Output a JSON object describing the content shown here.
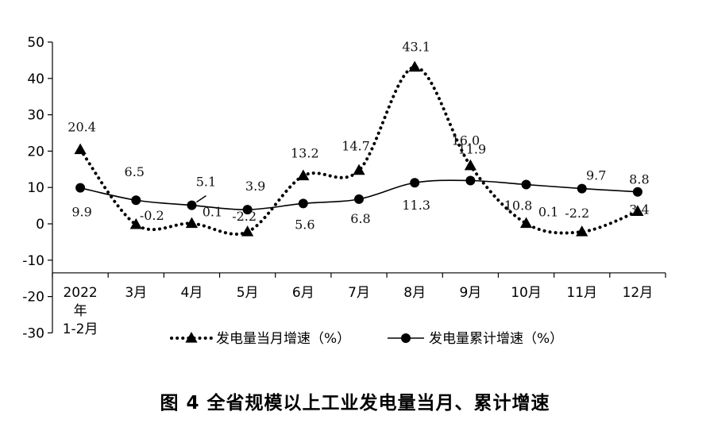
{
  "chart_data": {
    "type": "line",
    "title": "图 4  全省规模以上工业发电量当月、累计增速",
    "categories": [
      [
        "2022",
        "年",
        "1-2月"
      ],
      [
        "3月"
      ],
      [
        "4月"
      ],
      [
        "5月"
      ],
      [
        "6月"
      ],
      [
        "7月"
      ],
      [
        "8月"
      ],
      [
        "9月"
      ],
      [
        "10月"
      ],
      [
        "11月"
      ],
      [
        "12月"
      ]
    ],
    "ylim": [
      -30,
      50
    ],
    "yticks": [
      50,
      40,
      30,
      20,
      10,
      0,
      -10,
      -20,
      -30
    ],
    "legend_position": "bottom",
    "series": [
      {
        "name": "发电量当月增速（%）",
        "style": "dotted",
        "marker": "triangle",
        "values": [
          20.4,
          -0.2,
          0.1,
          -2.2,
          13.2,
          14.7,
          43.1,
          16.0,
          0.1,
          -2.2,
          3.4
        ],
        "labels": [
          "20.4",
          "-0.2",
          "0.1",
          "-2.2",
          "13.2",
          "14.7",
          "43.1",
          "16.0",
          "0.1",
          "-2.2",
          "3.4"
        ]
      },
      {
        "name": "发电量累计增速（%）",
        "style": "solid",
        "marker": "circle",
        "values": [
          9.9,
          6.5,
          5.1,
          3.9,
          5.6,
          6.8,
          11.3,
          11.9,
          10.8,
          9.7,
          8.8
        ],
        "labels": [
          "9.9",
          "6.5",
          "5.1",
          "3.9",
          "5.6",
          "6.8",
          "11.3",
          "11.9",
          "10.8",
          "9.7",
          "8.8"
        ]
      }
    ]
  }
}
